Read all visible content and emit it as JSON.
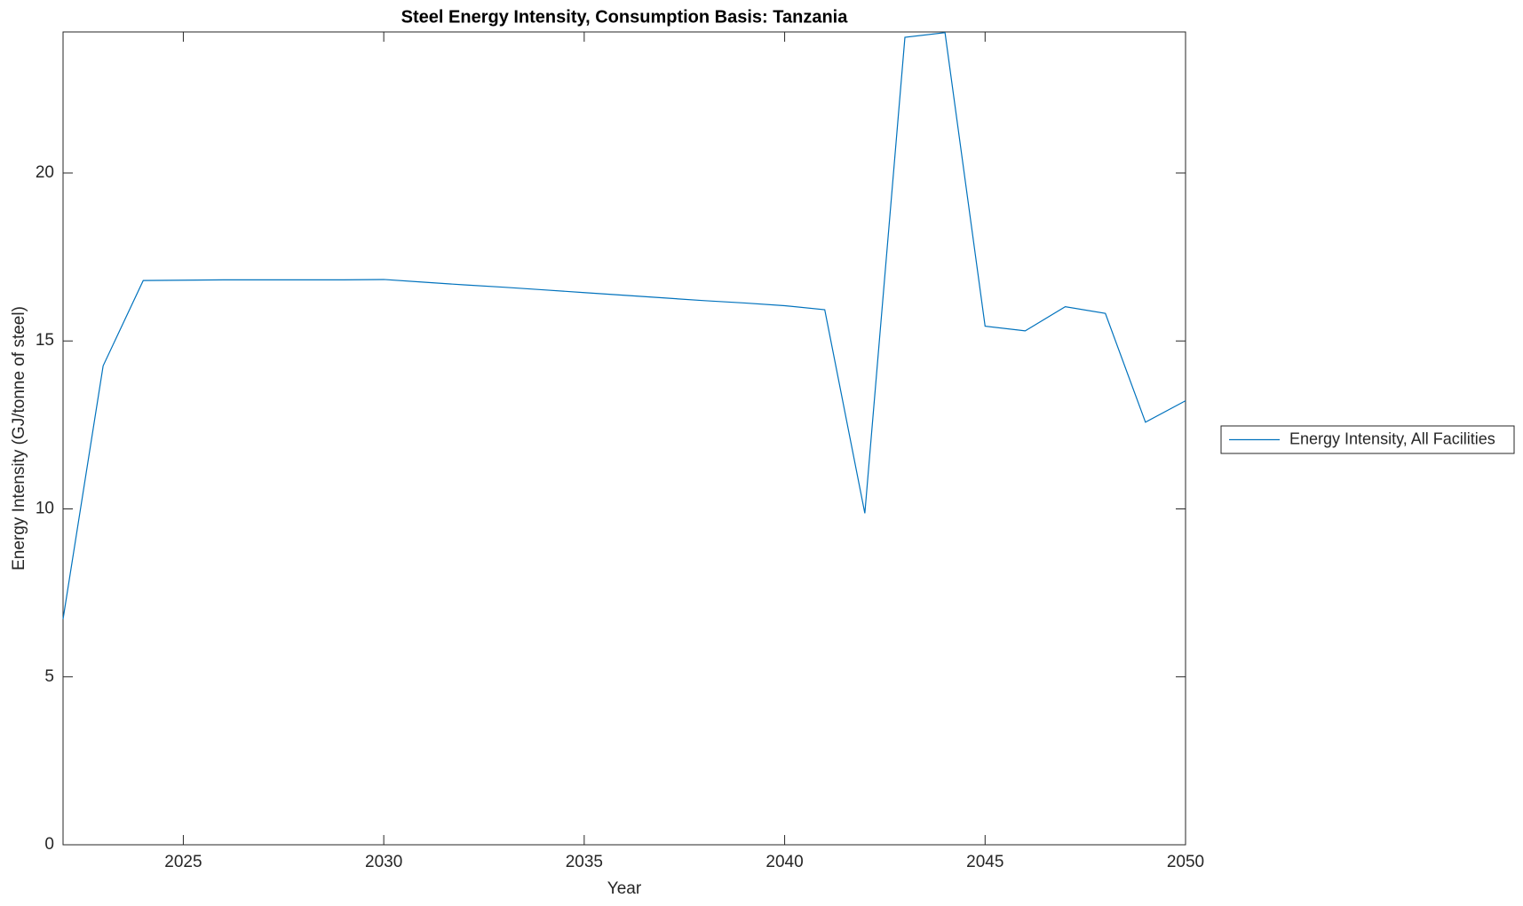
{
  "chart_data": {
    "type": "line",
    "title": "Steel Energy Intensity, Consumption Basis: Tanzania",
    "x_label": "Year",
    "y_label": "Energy Intensity (GJ/tonne of steel)",
    "x": [
      2022,
      2023,
      2024,
      2025,
      2026,
      2027,
      2028,
      2029,
      2030,
      2031,
      2032,
      2033,
      2034,
      2035,
      2036,
      2037,
      2038,
      2039,
      2040,
      2041,
      2042,
      2043,
      2044,
      2045,
      2046,
      2047,
      2048,
      2049,
      2050
    ],
    "series": [
      {
        "name": "Energy Intensity, All Facilities",
        "color": "#0072bd",
        "values": [
          6.72,
          14.26,
          16.8,
          16.81,
          16.82,
          16.82,
          16.82,
          16.82,
          16.83,
          16.75,
          16.67,
          16.6,
          16.52,
          16.44,
          16.36,
          16.28,
          16.2,
          16.13,
          16.05,
          15.93,
          9.87,
          24.04,
          24.18,
          15.44,
          15.3,
          16.02,
          15.82,
          12.58,
          13.22
        ]
      }
    ],
    "xlim": [
      2022,
      2050
    ],
    "xticks": [
      2025,
      2030,
      2035,
      2040,
      2045,
      2050
    ],
    "ylim": [
      0,
      24.2
    ],
    "yticks": [
      0,
      5,
      10,
      15,
      20
    ],
    "grid": false,
    "legend": "eastoutside"
  }
}
